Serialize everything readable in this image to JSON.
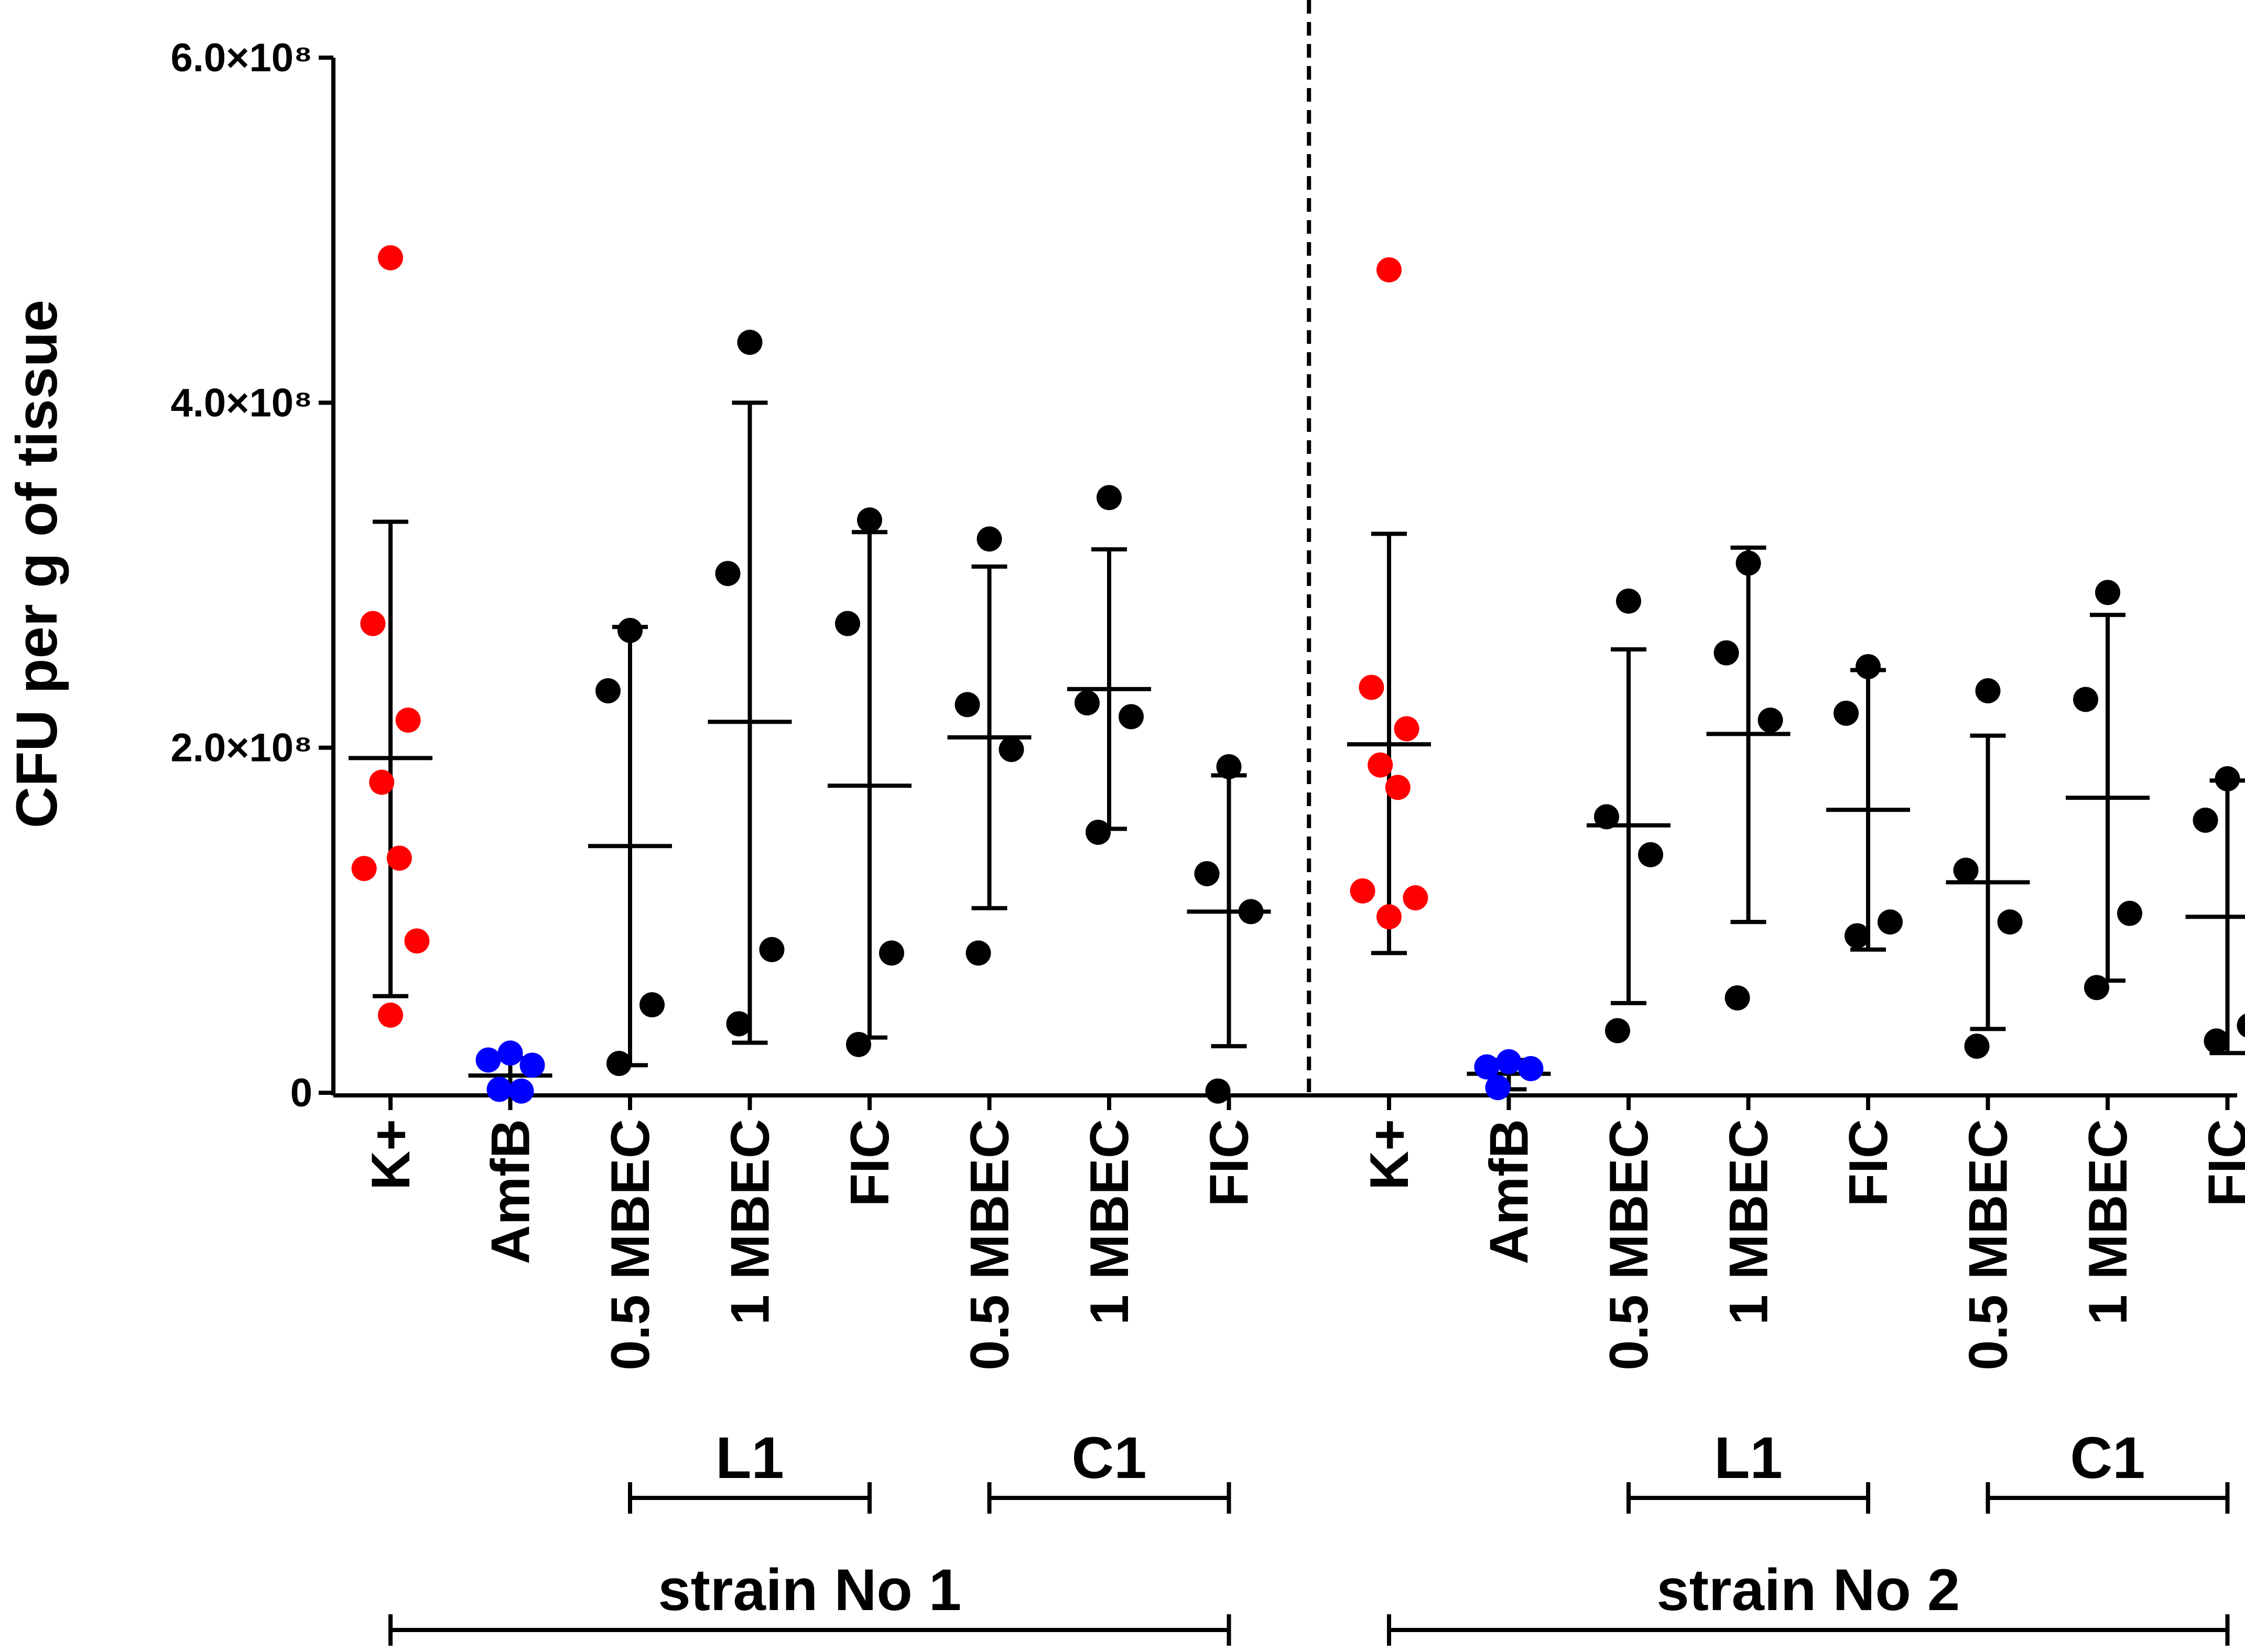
{
  "chart_data": {
    "type": "scatter",
    "ylabel": "CFU per g of tissue",
    "ylim": [
      0,
      600000000
    ],
    "y_ticks": [
      {
        "value": 0,
        "label": "0"
      },
      {
        "value": 200000000,
        "label": "2.0×10⁸"
      },
      {
        "value": 400000000,
        "label": "4.0×10⁸"
      },
      {
        "value": 600000000,
        "label": "6.0×10⁸"
      }
    ],
    "categories": [
      "K+",
      "AmfB",
      "0.5 MBEC",
      "1 MBEC",
      "FIC",
      "0.5 MBEC",
      "1 MBEC",
      "FIC",
      "K+",
      "AmfB",
      "0.5 MBEC",
      "1 MBEC",
      "FIC",
      "0.5 MBEC",
      "1 MBEC",
      "FIC"
    ],
    "colors": {
      "control_positive": "#ff0000",
      "control_amfb": "#0000ff",
      "treatment": "#000000"
    },
    "divider_after_index": 7,
    "series": [
      {
        "category_index": 0,
        "color": "#ff0000",
        "points": [
          484000000,
          272000000,
          216000000,
          180000000,
          136000000,
          130000000,
          88000000,
          45000000
        ],
        "mean": 194000000,
        "sd_upper": 331000000,
        "sd_lower": 56000000
      },
      {
        "category_index": 1,
        "color": "#0000ff",
        "points": [
          23000000,
          19000000,
          16000000,
          2000000,
          1000000
        ],
        "mean": 10000000,
        "sd_upper": 20000000,
        "sd_lower": 1000000
      },
      {
        "category_index": 2,
        "color": "#000000",
        "points": [
          268000000,
          233000000,
          51000000,
          17000000
        ],
        "mean": 143000000,
        "sd_upper": 270000000,
        "sd_lower": 16000000
      },
      {
        "category_index": 3,
        "color": "#000000",
        "points": [
          435000000,
          301000000,
          83000000,
          40000000
        ],
        "mean": 215000000,
        "sd_upper": 400000000,
        "sd_lower": 29000000
      },
      {
        "category_index": 4,
        "color": "#000000",
        "points": [
          332000000,
          272000000,
          81000000,
          28000000
        ],
        "mean": 178000000,
        "sd_upper": 325000000,
        "sd_lower": 32000000
      },
      {
        "category_index": 5,
        "color": "#000000",
        "points": [
          321000000,
          225000000,
          199000000,
          81000000
        ],
        "mean": 206000000,
        "sd_upper": 305000000,
        "sd_lower": 107000000
      },
      {
        "category_index": 6,
        "color": "#000000",
        "points": [
          345000000,
          226000000,
          218000000,
          151000000
        ],
        "mean": 234000000,
        "sd_upper": 315000000,
        "sd_lower": 153000000
      },
      {
        "category_index": 7,
        "color": "#000000",
        "points": [
          189000000,
          127000000,
          105000000,
          1000000
        ],
        "mean": 105000000,
        "sd_upper": 184000000,
        "sd_lower": 27000000
      },
      {
        "category_index": 8,
        "color": "#ff0000",
        "points": [
          477000000,
          235000000,
          211000000,
          190000000,
          177000000,
          117000000,
          113000000,
          102000000
        ],
        "mean": 202000000,
        "sd_upper": 324000000,
        "sd_lower": 81000000
      },
      {
        "category_index": 9,
        "color": "#0000ff",
        "points": [
          18000000,
          15000000,
          14000000,
          3000000
        ],
        "mean": 11000000,
        "sd_upper": 19000000,
        "sd_lower": 2000000
      },
      {
        "category_index": 10,
        "color": "#000000",
        "points": [
          285000000,
          160000000,
          138000000,
          36000000
        ],
        "mean": 155000000,
        "sd_upper": 257000000,
        "sd_lower": 52000000
      },
      {
        "category_index": 11,
        "color": "#000000",
        "points": [
          307000000,
          255000000,
          216000000,
          55000000
        ],
        "mean": 208000000,
        "sd_upper": 316000000,
        "sd_lower": 99000000
      },
      {
        "category_index": 12,
        "color": "#000000",
        "points": [
          247000000,
          220000000,
          99000000,
          91000000
        ],
        "mean": 164000000,
        "sd_upper": 245000000,
        "sd_lower": 83000000
      },
      {
        "category_index": 13,
        "color": "#000000",
        "points": [
          233000000,
          129000000,
          99000000,
          27000000
        ],
        "mean": 122000000,
        "sd_upper": 207000000,
        "sd_lower": 37000000
      },
      {
        "category_index": 14,
        "color": "#000000",
        "points": [
          290000000,
          228000000,
          104000000,
          61000000
        ],
        "mean": 171000000,
        "sd_upper": 277000000,
        "sd_lower": 65000000
      },
      {
        "category_index": 15,
        "color": "#000000",
        "points": [
          182000000,
          158000000,
          39000000,
          30000000
        ],
        "mean": 102000000,
        "sd_upper": 181000000,
        "sd_lower": 23000000
      }
    ],
    "group_brackets": [
      {
        "label": "L1",
        "from_index": 2,
        "to_index": 4,
        "level": 1
      },
      {
        "label": "C1",
        "from_index": 5,
        "to_index": 7,
        "level": 1
      },
      {
        "label": "L1",
        "from_index": 10,
        "to_index": 12,
        "level": 1
      },
      {
        "label": "C1",
        "from_index": 13,
        "to_index": 15,
        "level": 1
      },
      {
        "label": "strain No 1",
        "from_index": 0,
        "to_index": 7,
        "level": 2
      },
      {
        "label": "strain No 2",
        "from_index": 8,
        "to_index": 15,
        "level": 2
      }
    ]
  }
}
